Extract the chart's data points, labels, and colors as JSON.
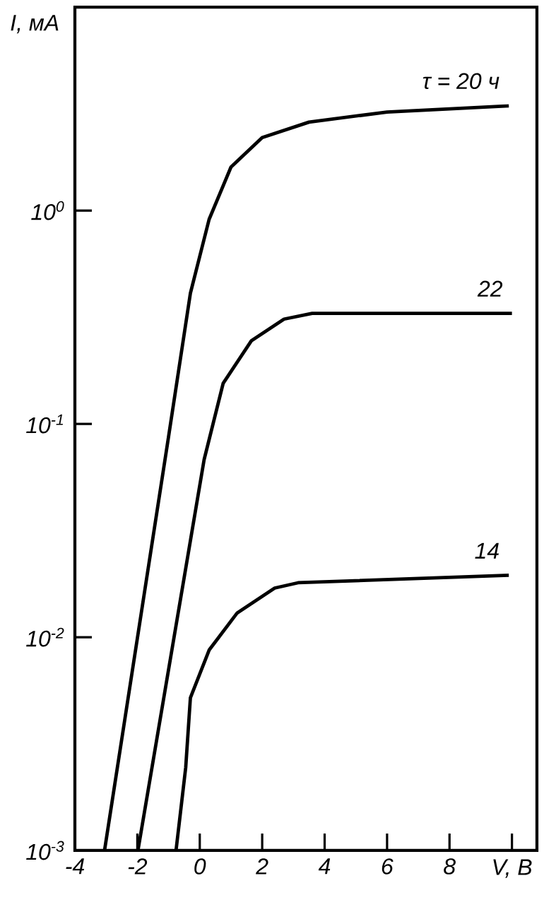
{
  "chart_data": {
    "type": "line",
    "xlabel": "V, В",
    "ylabel": "I, мА",
    "log": "y",
    "xlim": [
      -4,
      10.8
    ],
    "ylim": [
      0.001,
      9
    ],
    "xticks": [
      -4,
      -2,
      0,
      2,
      4,
      6,
      8,
      {
        "value": 10,
        "label": null
      }
    ],
    "yticks": [
      {
        "value": 0.001,
        "label": "10$^{-3}$"
      },
      {
        "value": 0.01,
        "label": "10$^{-2}$"
      },
      {
        "value": 0.1,
        "label": "10$^{-1}$"
      },
      {
        "value": 1,
        "label": "10$^{0}$"
      }
    ],
    "grid": false,
    "marker": "none",
    "line_style": "solid",
    "series": [
      {
        "name": "τ = 20 ч",
        "color": "#000000",
        "x": [
          -3.05,
          -1.0,
          -0.3,
          0.3,
          1.0,
          2.0,
          3.5,
          6.0,
          9.9
        ],
        "values": [
          0.001,
          0.087,
          0.41,
          0.91,
          1.6,
          2.2,
          2.6,
          2.9,
          3.1
        ]
      },
      {
        "name": "22",
        "color": "#000000",
        "x": [
          -1.98,
          0.14,
          0.75,
          1.65,
          2.7,
          3.6,
          10.0
        ],
        "values": [
          0.001,
          0.068,
          0.155,
          0.245,
          0.31,
          0.33,
          0.33
        ]
      },
      {
        "name": "14",
        "color": "#000000",
        "x": [
          -0.76,
          -0.45,
          -0.3,
          0.3,
          1.2,
          2.4,
          3.15,
          9.9
        ],
        "values": [
          0.001,
          0.00245,
          0.0052,
          0.0087,
          0.013,
          0.017,
          0.018,
          0.0195
        ]
      }
    ]
  }
}
